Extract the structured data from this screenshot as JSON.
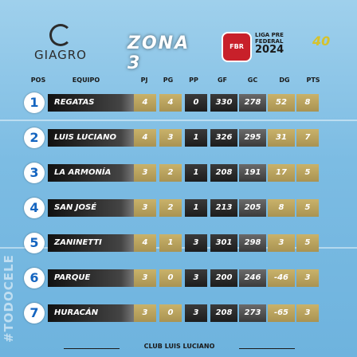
{
  "header": {
    "sponsor_name": "GIAGRO",
    "title": "ZONA 3",
    "fbr_badge": "FBR",
    "league_line1": "LIGA PRE",
    "league_line2": "FEDERAL",
    "league_year": "2024",
    "anniversary": "40"
  },
  "columns": [
    "POS",
    "EQUIPO",
    "PJ",
    "PG",
    "PP",
    "GF",
    "GC",
    "DG",
    "PTS"
  ],
  "rows": [
    {
      "pos": "1",
      "team": "REGATAS",
      "pj": "4",
      "pg": "4",
      "pp": "0",
      "gf": "330",
      "gc": "278",
      "dg": "52",
      "pts": "8"
    },
    {
      "pos": "2",
      "team": "LUIS LUCIANO",
      "pj": "4",
      "pg": "3",
      "pp": "1",
      "gf": "326",
      "gc": "295",
      "dg": "31",
      "pts": "7"
    },
    {
      "pos": "3",
      "team": "LA ARMONÍA",
      "pj": "3",
      "pg": "2",
      "pp": "1",
      "gf": "208",
      "gc": "191",
      "dg": "17",
      "pts": "5"
    },
    {
      "pos": "4",
      "team": "SAN JOSÉ",
      "pj": "3",
      "pg": "2",
      "pp": "1",
      "gf": "213",
      "gc": "205",
      "dg": "8",
      "pts": "5"
    },
    {
      "pos": "5",
      "team": "ZANINETTI",
      "pj": "4",
      "pg": "1",
      "pp": "3",
      "gf": "301",
      "gc": "298",
      "dg": "3",
      "pts": "5"
    },
    {
      "pos": "6",
      "team": "PARQUE",
      "pj": "3",
      "pg": "0",
      "pp": "3",
      "gf": "200",
      "gc": "246",
      "dg": "-46",
      "pts": "3"
    },
    {
      "pos": "7",
      "team": "HURACÁN",
      "pj": "3",
      "pg": "0",
      "pp": "3",
      "gf": "208",
      "gc": "273",
      "dg": "-65",
      "pts": "3"
    }
  ],
  "hashtag": "#TODOCELE",
  "footer": "CLUB LUIS LUCIANO"
}
